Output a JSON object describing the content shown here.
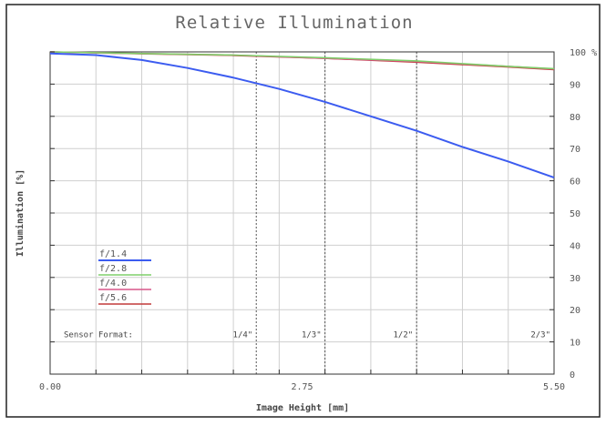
{
  "chart_data": {
    "type": "line",
    "title": "Relative Illumination",
    "xlabel": "Image Height [mm]",
    "ylabel": "Illumination [%]",
    "xlim": [
      0.0,
      5.5
    ],
    "ylim": [
      0,
      100
    ],
    "x_tick_labels": [
      {
        "value": 0.0,
        "label": "0.00"
      },
      {
        "value": 2.75,
        "label": "2.75"
      },
      {
        "value": 5.5,
        "label": "5.50"
      }
    ],
    "y_ticks": [
      0,
      10,
      20,
      30,
      40,
      50,
      60,
      70,
      80,
      90,
      100
    ],
    "y_tick_unit": "%",
    "grid": true,
    "legend_position": "bottom-left",
    "series": [
      {
        "name": "f/1.4",
        "color": "#3c5cf0",
        "x": [
          0.0,
          0.5,
          1.0,
          1.5,
          2.0,
          2.5,
          3.0,
          3.5,
          4.0,
          4.5,
          5.0,
          5.5
        ],
        "y": [
          99.5,
          99.0,
          97.5,
          95.0,
          92.0,
          88.5,
          84.5,
          80.0,
          75.5,
          70.5,
          66.0,
          61.0
        ]
      },
      {
        "name": "f/2.8",
        "color": "#7fcf6a",
        "x": [
          0.0,
          1.0,
          2.0,
          3.0,
          4.0,
          5.0,
          5.5
        ],
        "y": [
          100,
          99.5,
          99.0,
          98.2,
          97.2,
          95.5,
          94.8
        ]
      },
      {
        "name": "f/4.0",
        "color": "#d8578a",
        "x": [
          0.0,
          1.0,
          2.0,
          3.0,
          4.0,
          5.0,
          5.5
        ],
        "y": [
          100,
          99.5,
          99.0,
          98.0,
          97.0,
          95.5,
          94.7
        ]
      },
      {
        "name": "f/5.6",
        "color": "#c23a3a",
        "x": [
          0.0,
          1.0,
          2.0,
          3.0,
          4.0,
          5.0,
          5.5
        ],
        "y": [
          100,
          99.4,
          98.9,
          98.0,
          96.8,
          95.3,
          94.5
        ]
      }
    ],
    "sensor_formats": {
      "label": "Sensor Format:",
      "items": [
        {
          "label": "1/4\"",
          "x": 2.25
        },
        {
          "label": "1/3\"",
          "x": 3.0
        },
        {
          "label": "1/2\"",
          "x": 4.0
        },
        {
          "label": "2/3\"",
          "x": 5.5
        }
      ]
    }
  }
}
